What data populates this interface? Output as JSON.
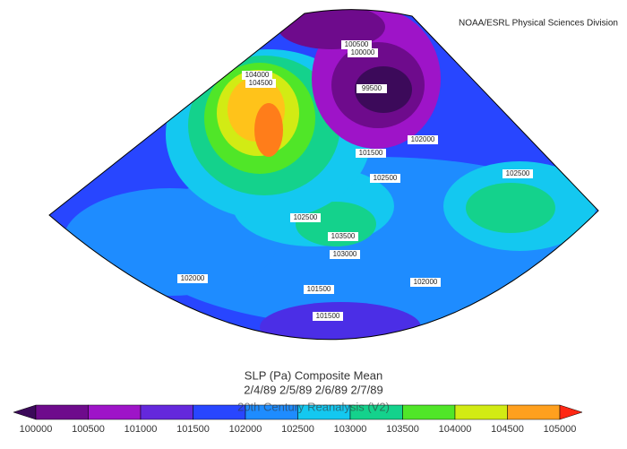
{
  "header": {
    "source": "NOAA/ESRL Physical Sciences Division"
  },
  "contour_labels": [
    "100500",
    "100000",
    "104000",
    "104500",
    "99500",
    "102000",
    "101500",
    "102500",
    "102500",
    "102500",
    "103500",
    "103000",
    "102000",
    "102000",
    "101500",
    "101500"
  ],
  "title": {
    "lines": [
      "SLP (Pa) Composite Mean",
      "2/4/89 2/5/89 2/6/89 2/7/89",
      "20th Century Reanalysis (V2)"
    ]
  },
  "colorbar": {
    "labels": [
      "100000",
      "100500",
      "101000",
      "101500",
      "102000",
      "102500",
      "103000",
      "103500",
      "104000",
      "104500",
      "105000"
    ],
    "colors": [
      "#3c0a5a",
      "#6e0b8c",
      "#9e14c8",
      "#6428dc",
      "#2846ff",
      "#1e8cff",
      "#14c8f0",
      "#14d28c",
      "#50e628",
      "#d2eb14",
      "#ffa01e",
      "#ff2814"
    ]
  }
}
